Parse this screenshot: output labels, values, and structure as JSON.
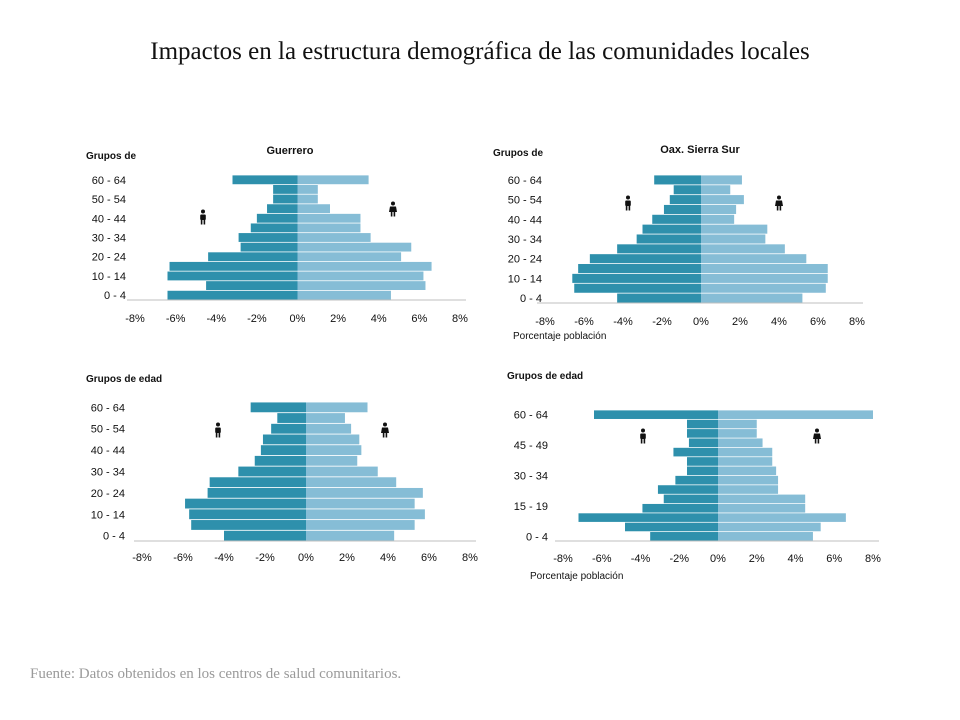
{
  "slide": {
    "title": "Impactos en la estructura demográfica de las comunidades locales",
    "source": "Fuente: Datos obtenidos en los centros de salud comunitarios."
  },
  "colors": {
    "male": "#2e90ac",
    "female": "#86bdd6",
    "axis": "#bfbfbf",
    "icon": "#111111"
  },
  "chart_data": [
    {
      "type": "bar",
      "orientation": "horizontal-population-pyramid",
      "title": "Guerrero",
      "ylabel": "Grupos de",
      "xlabel": "",
      "xlim": [
        -8,
        8
      ],
      "x_ticks": [
        "-8%",
        "-6%",
        "-4%",
        "-2%",
        "0%",
        "2%",
        "4%",
        "6%",
        "8%"
      ],
      "y_tick_labels": [
        "0 - 4",
        "10 - 14",
        "20 - 24",
        "30 - 34",
        "40 - 44",
        "50 - 54",
        "60 - 64"
      ],
      "series": [
        {
          "values": [
            -6.4,
            -4.5,
            -6.4,
            -6.3,
            -4.4,
            -2.8,
            -2.9,
            -2.3,
            -2.0,
            -1.5,
            -1.2,
            -1.2,
            -3.2
          ]
        },
        {
          "values": [
            4.6,
            6.3,
            6.2,
            6.6,
            5.1,
            5.6,
            3.6,
            3.1,
            3.1,
            1.6,
            1.0,
            1.0,
            3.5
          ]
        }
      ]
    },
    {
      "type": "bar",
      "orientation": "horizontal-population-pyramid",
      "title": "Oax. Sierra Sur",
      "ylabel": "Grupos de",
      "xlabel": "Porcentaje población",
      "xlim": [
        -8,
        8
      ],
      "x_ticks": [
        "-8%",
        "-6%",
        "-4%",
        "-2%",
        "0%",
        "2%",
        "4%",
        "6%",
        "8%"
      ],
      "y_tick_labels": [
        "0 - 4",
        "10 - 14",
        "20 - 24",
        "30 - 34",
        "40 - 44",
        "50 - 54",
        "60 - 64"
      ],
      "series": [
        {
          "values": [
            -4.3,
            -6.5,
            -6.6,
            -6.3,
            -5.7,
            -4.3,
            -3.3,
            -3.0,
            -2.5,
            -1.9,
            -1.6,
            -1.4,
            -2.4
          ]
        },
        {
          "values": [
            5.2,
            6.4,
            6.5,
            6.5,
            5.4,
            4.3,
            3.3,
            3.4,
            1.7,
            1.8,
            2.2,
            1.5,
            2.1
          ]
        }
      ]
    },
    {
      "type": "bar",
      "orientation": "horizontal-population-pyramid",
      "title": "",
      "ylabel": "Grupos de edad",
      "xlabel": "",
      "xlim": [
        -8,
        8
      ],
      "x_ticks": [
        "-8%",
        "-6%",
        "-4%",
        "-2%",
        "0%",
        "2%",
        "4%",
        "6%",
        "8%"
      ],
      "y_tick_labels": [
        "0 - 4",
        "10 - 14",
        "20 - 24",
        "30 - 34",
        "40 - 44",
        "50 - 54",
        "60 - 64"
      ],
      "series": [
        {
          "values": [
            -4.0,
            -5.6,
            -5.7,
            -5.9,
            -4.8,
            -4.7,
            -3.3,
            -2.5,
            -2.2,
            -2.1,
            -1.7,
            -1.4,
            -2.7
          ]
        },
        {
          "values": [
            4.3,
            5.3,
            5.8,
            5.3,
            5.7,
            4.4,
            3.5,
            2.5,
            2.7,
            2.6,
            2.2,
            1.9,
            3.0
          ]
        }
      ]
    },
    {
      "type": "bar",
      "orientation": "horizontal-population-pyramid",
      "title": "",
      "ylabel": "Grupos de edad",
      "xlabel": "Porcentaje población",
      "xlim": [
        -8,
        8
      ],
      "x_ticks": [
        "-8%",
        "-6%",
        "-4%",
        "-2%",
        "0%",
        "2%",
        "4%",
        "6%",
        "8%"
      ],
      "y_tick_labels": [
        "0 - 4",
        "15 - 19",
        "30 - 34",
        "45 - 49",
        "60 - 64"
      ],
      "series": [
        {
          "values": [
            -3.5,
            -4.8,
            -7.2,
            -3.9,
            -2.8,
            -3.1,
            -2.2,
            -1.6,
            -1.6,
            -2.3,
            -1.5,
            -1.6,
            -1.6,
            -6.4
          ]
        },
        {
          "values": [
            4.9,
            5.3,
            6.6,
            4.5,
            4.5,
            3.1,
            3.1,
            3.0,
            2.8,
            2.8,
            2.3,
            2.0,
            2.0,
            8.0
          ]
        }
      ]
    }
  ]
}
